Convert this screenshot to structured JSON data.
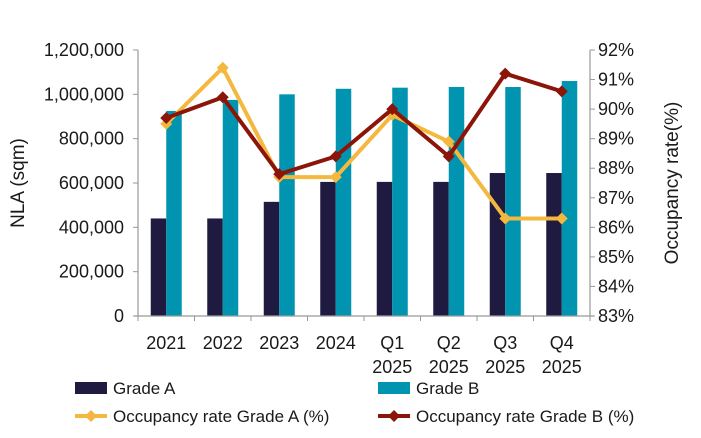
{
  "chart_data": {
    "type": "bar+line",
    "categories": [
      "2021",
      "2022",
      "2023",
      "2024",
      "Q1 2025",
      "Q2 2025",
      "Q3 2025",
      "Q4 2025"
    ],
    "category_lines": [
      [
        "2021"
      ],
      [
        "2022"
      ],
      [
        "2023"
      ],
      [
        "2024"
      ],
      [
        "Q1",
        "2025"
      ],
      [
        "Q2",
        "2025"
      ],
      [
        "Q3",
        "2025"
      ],
      [
        "Q4",
        "2025"
      ]
    ],
    "ylabel": "NLA (sqm)",
    "y2label": "Occupancy rate(%)",
    "ylim": [
      0,
      1200000
    ],
    "y2lim": [
      83,
      92
    ],
    "yticks": [
      "0",
      "200,000",
      "400,000",
      "600,000",
      "800,000",
      "1,000,000",
      "1,200,000"
    ],
    "y2ticks": [
      "83%",
      "84%",
      "85%",
      "86%",
      "87%",
      "88%",
      "89%",
      "90%",
      "91%",
      "92%"
    ],
    "grid": false,
    "legend_position": "bottom",
    "bar_series": [
      {
        "name": "Grade A",
        "color": "#1e1a40",
        "values": [
          440000,
          440000,
          515000,
          605000,
          605000,
          605000,
          645000,
          645000
        ]
      },
      {
        "name": "Grade B",
        "color": "#0094b0",
        "values": [
          925000,
          975000,
          1000000,
          1025000,
          1030000,
          1033000,
          1033000,
          1060000
        ]
      }
    ],
    "line_series": [
      {
        "name": "Occupancy rate Grade A (%)",
        "color": "#f4b83e",
        "axis": "right",
        "values": [
          89.5,
          91.4,
          87.7,
          87.7,
          89.8,
          88.9,
          86.3,
          86.3
        ]
      },
      {
        "name": "Occupancy rate Grade B (%)",
        "color": "#8a1508",
        "axis": "right",
        "values": [
          89.7,
          90.4,
          87.8,
          88.4,
          90.0,
          88.4,
          91.2,
          90.6
        ]
      }
    ]
  }
}
